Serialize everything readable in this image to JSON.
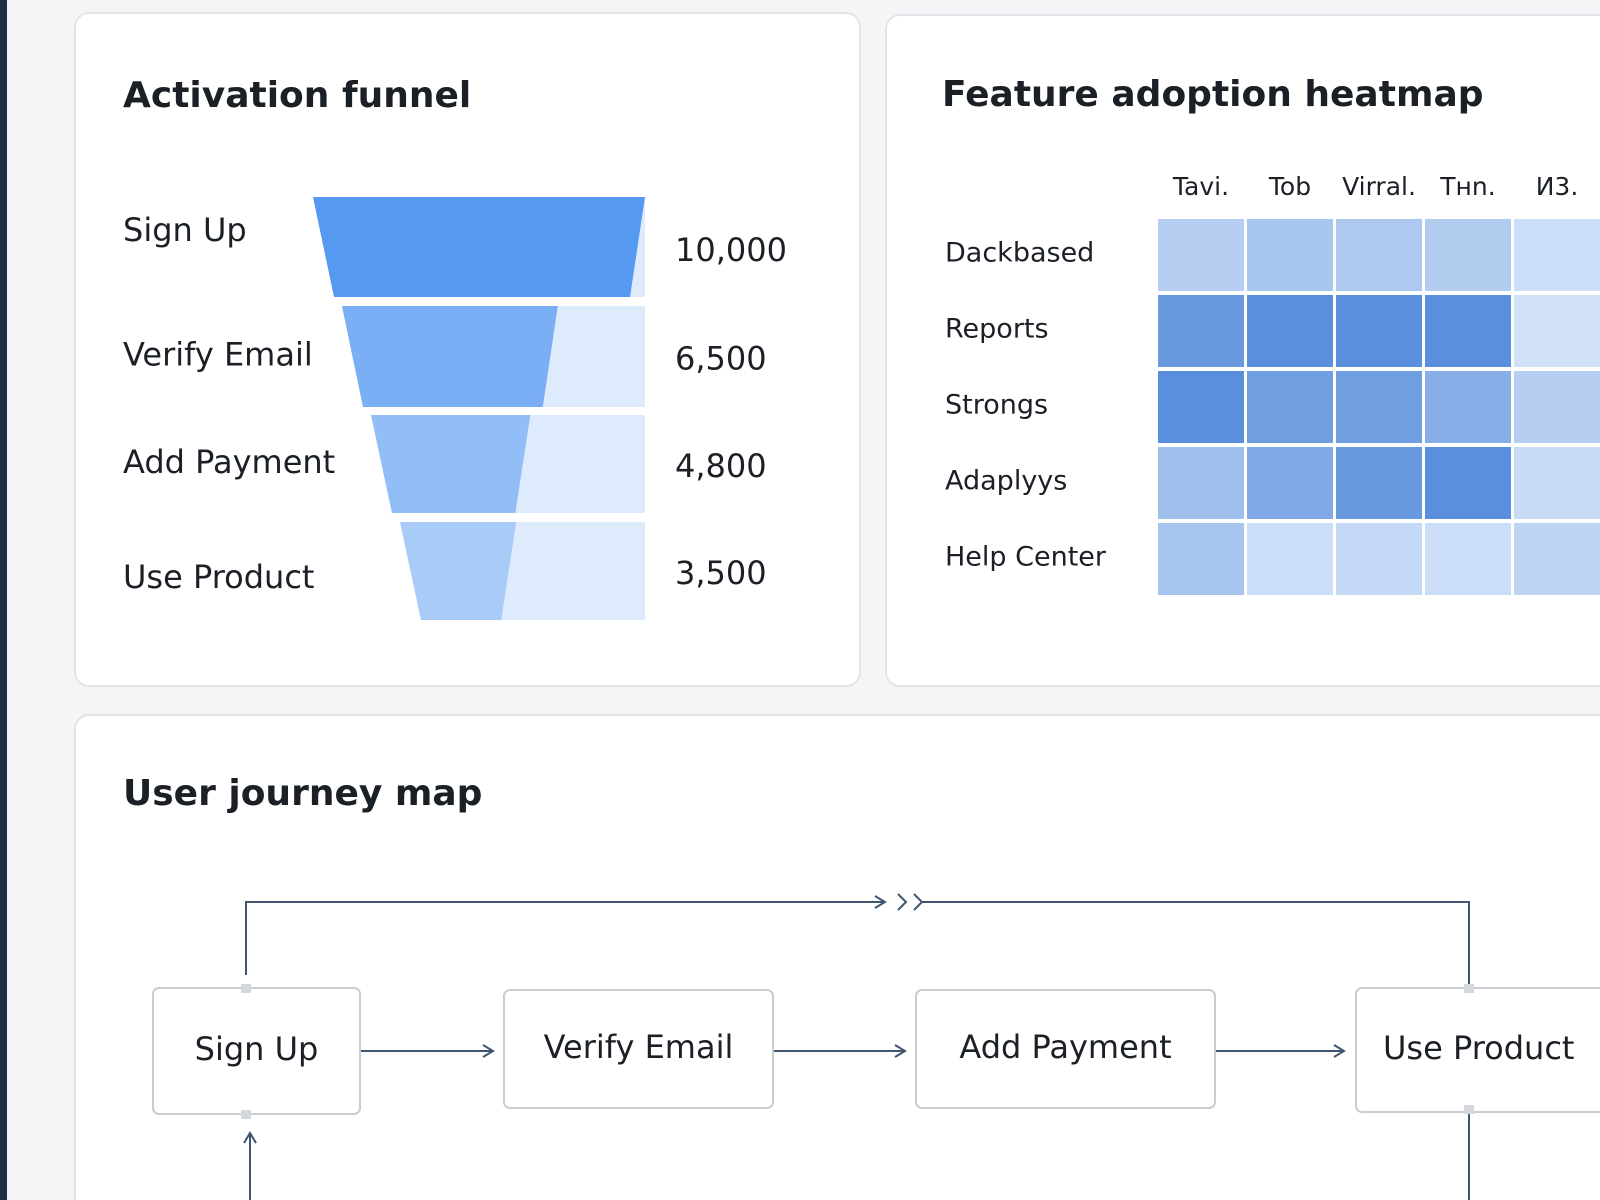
{
  "funnel": {
    "title": "Activation funnel",
    "stages": [
      "Sign Up",
      "Verify Email",
      "Add Payment",
      "Use Product"
    ],
    "values": [
      10000,
      6500,
      4800,
      3500
    ],
    "value_labels": [
      "10,000",
      "6,500",
      "4,800",
      "3,500"
    ],
    "colors": [
      "#5599f0",
      "#7aaff5",
      "#92bef7",
      "#a8cbf8"
    ],
    "background_color": "#deebfc"
  },
  "heatmap": {
    "title": "Feature adoption heatmap",
    "columns": [
      "Tavi.",
      "Tob",
      "Virral.",
      "Tнn.",
      "И3."
    ],
    "rows": [
      "Dackbased",
      "Reports",
      "Strongs",
      "Adaplyys",
      "Help Center"
    ],
    "values": [
      [
        30,
        38,
        35,
        32,
        15
      ],
      [
        80,
        90,
        90,
        90,
        12
      ],
      [
        90,
        75,
        75,
        60,
        30
      ],
      [
        45,
        65,
        80,
        90,
        18
      ],
      [
        40,
        15,
        20,
        15,
        25
      ]
    ],
    "color_min": "#e3eefc",
    "color_max": "#4a84d8"
  },
  "journey": {
    "title": "User journey map",
    "nodes": [
      {
        "label": "Sign Up"
      },
      {
        "label": "Verify Email"
      },
      {
        "label": "Add Payment"
      },
      {
        "label": "Use Product"
      }
    ]
  }
}
